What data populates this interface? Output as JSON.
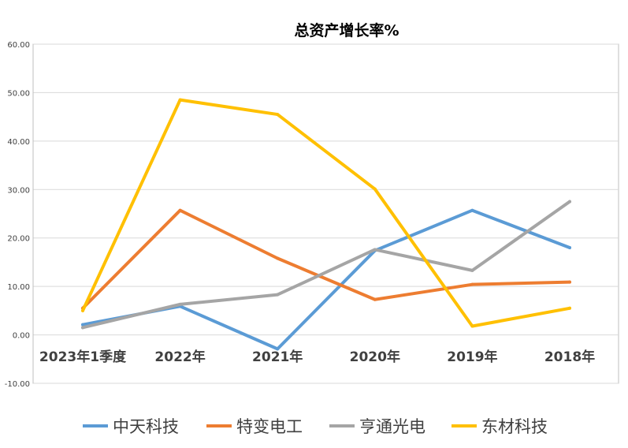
{
  "chart_data": {
    "type": "line",
    "title": "总资产增长率%",
    "categories": [
      "2023年1季度",
      "2022年",
      "2021年",
      "2020年",
      "2019年",
      "2018年"
    ],
    "ylim": [
      -10,
      60
    ],
    "yticks": [
      "-10.00",
      "0.00",
      "10.00",
      "20.00",
      "30.00",
      "40.00",
      "50.00",
      "60.00"
    ],
    "grid": true,
    "legend_position": "bottom",
    "series": [
      {
        "name": "中天科技",
        "color": "#5b9bd5",
        "values": [
          2.1,
          5.9,
          -2.9,
          17.4,
          25.7,
          18.0
        ]
      },
      {
        "name": "特变电工",
        "color": "#ed7d31",
        "values": [
          5.5,
          25.7,
          15.8,
          7.3,
          10.4,
          10.9
        ]
      },
      {
        "name": "亨通光电",
        "color": "#a5a5a5",
        "values": [
          1.5,
          6.3,
          8.3,
          17.6,
          13.3,
          27.5
        ]
      },
      {
        "name": "东材科技",
        "color": "#ffc000",
        "values": [
          5.0,
          48.5,
          45.5,
          30.1,
          1.8,
          5.5
        ]
      }
    ]
  }
}
